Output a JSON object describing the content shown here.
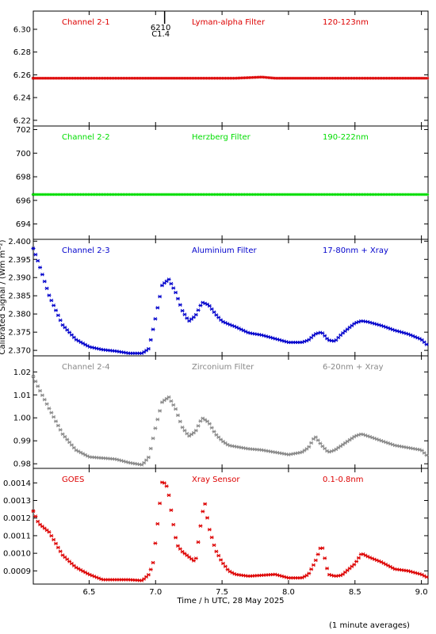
{
  "figure": {
    "ylabel": "Calibrated Signal / (Wm m⁻²)",
    "xlabel": "Time / h UTC, 28 May 2025",
    "footnote": "(1 minute averages)",
    "marker_note": {
      "line1": "6210",
      "line2": "C1.4",
      "x": 7.05
    }
  },
  "chart_data": [
    {
      "type": "scatter",
      "channel": "Channel 2-1",
      "filter": "Lyman-alpha Filter",
      "band": "120-123nm",
      "color": "#dd0000",
      "xlim": [
        6.08,
        9.05
      ],
      "ylim": [
        6.215,
        6.316
      ],
      "yticks": [
        "6.22",
        "6.24",
        "6.26",
        "6.28",
        "6.30"
      ],
      "series": {
        "x": [
          6.08,
          7.6,
          7.8,
          7.9,
          9.05
        ],
        "y": [
          6.257,
          6.257,
          6.258,
          6.257,
          6.257
        ]
      }
    },
    {
      "type": "scatter",
      "channel": "Channel 2-2",
      "filter": "Herzberg Filter",
      "band": "190-222nm",
      "color": "#00dd00",
      "xlim": [
        6.08,
        9.05
      ],
      "ylim": [
        692.7,
        702.3
      ],
      "yticks": [
        "694",
        "696",
        "698",
        "700",
        "702"
      ],
      "series": {
        "x": [
          6.08,
          9.05
        ],
        "y": [
          696.5,
          696.5
        ]
      }
    },
    {
      "type": "scatter",
      "channel": "Channel 2-3",
      "filter": "Aluminium Filter",
      "band": "17-80nm + Xray",
      "color": "#0000cc",
      "xlim": [
        6.08,
        9.05
      ],
      "ylim": [
        2.3685,
        2.4005
      ],
      "yticks": [
        "2.370",
        "2.375",
        "2.380",
        "2.385",
        "2.390",
        "2.395",
        "2.400"
      ],
      "series": {
        "x": [
          6.08,
          6.12,
          6.2,
          6.3,
          6.4,
          6.5,
          6.6,
          6.7,
          6.8,
          6.9,
          6.95,
          7.0,
          7.05,
          7.1,
          7.15,
          7.2,
          7.25,
          7.3,
          7.35,
          7.4,
          7.45,
          7.5,
          7.55,
          7.6,
          7.7,
          7.8,
          7.9,
          8.0,
          8.1,
          8.15,
          8.2,
          8.25,
          8.3,
          8.35,
          8.4,
          8.5,
          8.55,
          8.6,
          8.7,
          8.8,
          8.9,
          9.0,
          9.05
        ],
        "y": [
          2.398,
          2.394,
          2.385,
          2.377,
          2.373,
          2.371,
          2.3702,
          2.3698,
          2.3692,
          2.3692,
          2.3705,
          2.379,
          2.388,
          2.3895,
          2.386,
          2.381,
          2.378,
          2.3795,
          2.3832,
          2.3825,
          2.38,
          2.378,
          2.3772,
          2.3765,
          2.3748,
          2.3742,
          2.3732,
          2.3722,
          2.3722,
          2.3728,
          2.3745,
          2.375,
          2.3728,
          2.3725,
          2.3745,
          2.3775,
          2.3781,
          2.3778,
          2.3768,
          2.3755,
          2.3745,
          2.373,
          2.3712
        ]
      }
    },
    {
      "type": "scatter",
      "channel": "Channel 2-4",
      "filter": "Zirconium Filter",
      "band": "6-20nm + Xray",
      "color": "#888888",
      "xlim": [
        6.08,
        9.05
      ],
      "ylim": [
        0.978,
        1.027
      ],
      "yticks": [
        "0.98",
        "0.99",
        "1.00",
        "1.01",
        "1.02"
      ],
      "series": {
        "x": [
          6.08,
          6.12,
          6.2,
          6.3,
          6.4,
          6.5,
          6.6,
          6.7,
          6.8,
          6.9,
          6.95,
          7.0,
          7.05,
          7.1,
          7.15,
          7.2,
          7.25,
          7.3,
          7.35,
          7.4,
          7.45,
          7.5,
          7.55,
          7.6,
          7.7,
          7.8,
          7.9,
          8.0,
          8.1,
          8.15,
          8.2,
          8.25,
          8.3,
          8.35,
          8.4,
          8.5,
          8.55,
          8.6,
          8.7,
          8.8,
          8.9,
          9.0,
          9.05
        ],
        "y": [
          1.018,
          1.013,
          1.004,
          0.993,
          0.986,
          0.983,
          0.9825,
          0.982,
          0.9805,
          0.9795,
          0.983,
          0.996,
          1.007,
          1.009,
          1.004,
          0.996,
          0.992,
          0.994,
          1.0,
          0.998,
          0.993,
          0.99,
          0.988,
          0.9875,
          0.9865,
          0.986,
          0.985,
          0.984,
          0.985,
          0.987,
          0.992,
          0.988,
          0.985,
          0.986,
          0.988,
          0.992,
          0.993,
          0.992,
          0.99,
          0.988,
          0.987,
          0.986,
          0.983
        ]
      }
    },
    {
      "type": "scatter",
      "channel": "GOES",
      "filter": "Xray Sensor",
      "band": "0.1-0.8nm",
      "color": "#dd0000",
      "xlim": [
        6.08,
        9.05
      ],
      "ylim": [
        0.000825,
        0.0014825
      ],
      "yticks": [
        "0.0009",
        "0.0010",
        "0.0011",
        "0.0012",
        "0.0013",
        "0.0014"
      ],
      "series": {
        "x": [
          6.08,
          6.12,
          6.2,
          6.3,
          6.4,
          6.5,
          6.6,
          6.7,
          6.8,
          6.9,
          6.95,
          6.98,
          7.0,
          7.02,
          7.05,
          7.08,
          7.1,
          7.13,
          7.16,
          7.2,
          7.25,
          7.3,
          7.35,
          7.37,
          7.4,
          7.45,
          7.5,
          7.55,
          7.6,
          7.7,
          7.8,
          7.9,
          8.0,
          8.1,
          8.15,
          8.2,
          8.25,
          8.3,
          8.35,
          8.4,
          8.5,
          8.55,
          8.6,
          8.7,
          8.8,
          8.9,
          9.0,
          9.05
        ],
        "y": [
          0.00124,
          0.00117,
          0.00112,
          0.00099,
          0.00092,
          0.00088,
          0.00085,
          0.00085,
          0.00085,
          0.000845,
          0.00088,
          0.00094,
          0.00107,
          0.0012,
          0.00141,
          0.00139,
          0.00133,
          0.00118,
          0.00105,
          0.00101,
          0.00098,
          0.00095,
          0.00122,
          0.00129,
          0.00115,
          0.00102,
          0.00095,
          0.0009,
          0.00088,
          0.00087,
          0.000875,
          0.00088,
          0.00086,
          0.00086,
          0.00088,
          0.00095,
          0.00105,
          0.00088,
          0.00087,
          0.000875,
          0.00094,
          0.001,
          0.00098,
          0.00095,
          0.00091,
          0.0009,
          0.00088,
          0.00086
        ]
      }
    }
  ],
  "xaxis": {
    "ticks": [
      "6.5",
      "7.0",
      "7.5",
      "8.0",
      "8.5",
      "9.0"
    ],
    "tick_values": [
      6.5,
      7.0,
      7.5,
      8.0,
      8.5,
      9.0
    ]
  }
}
